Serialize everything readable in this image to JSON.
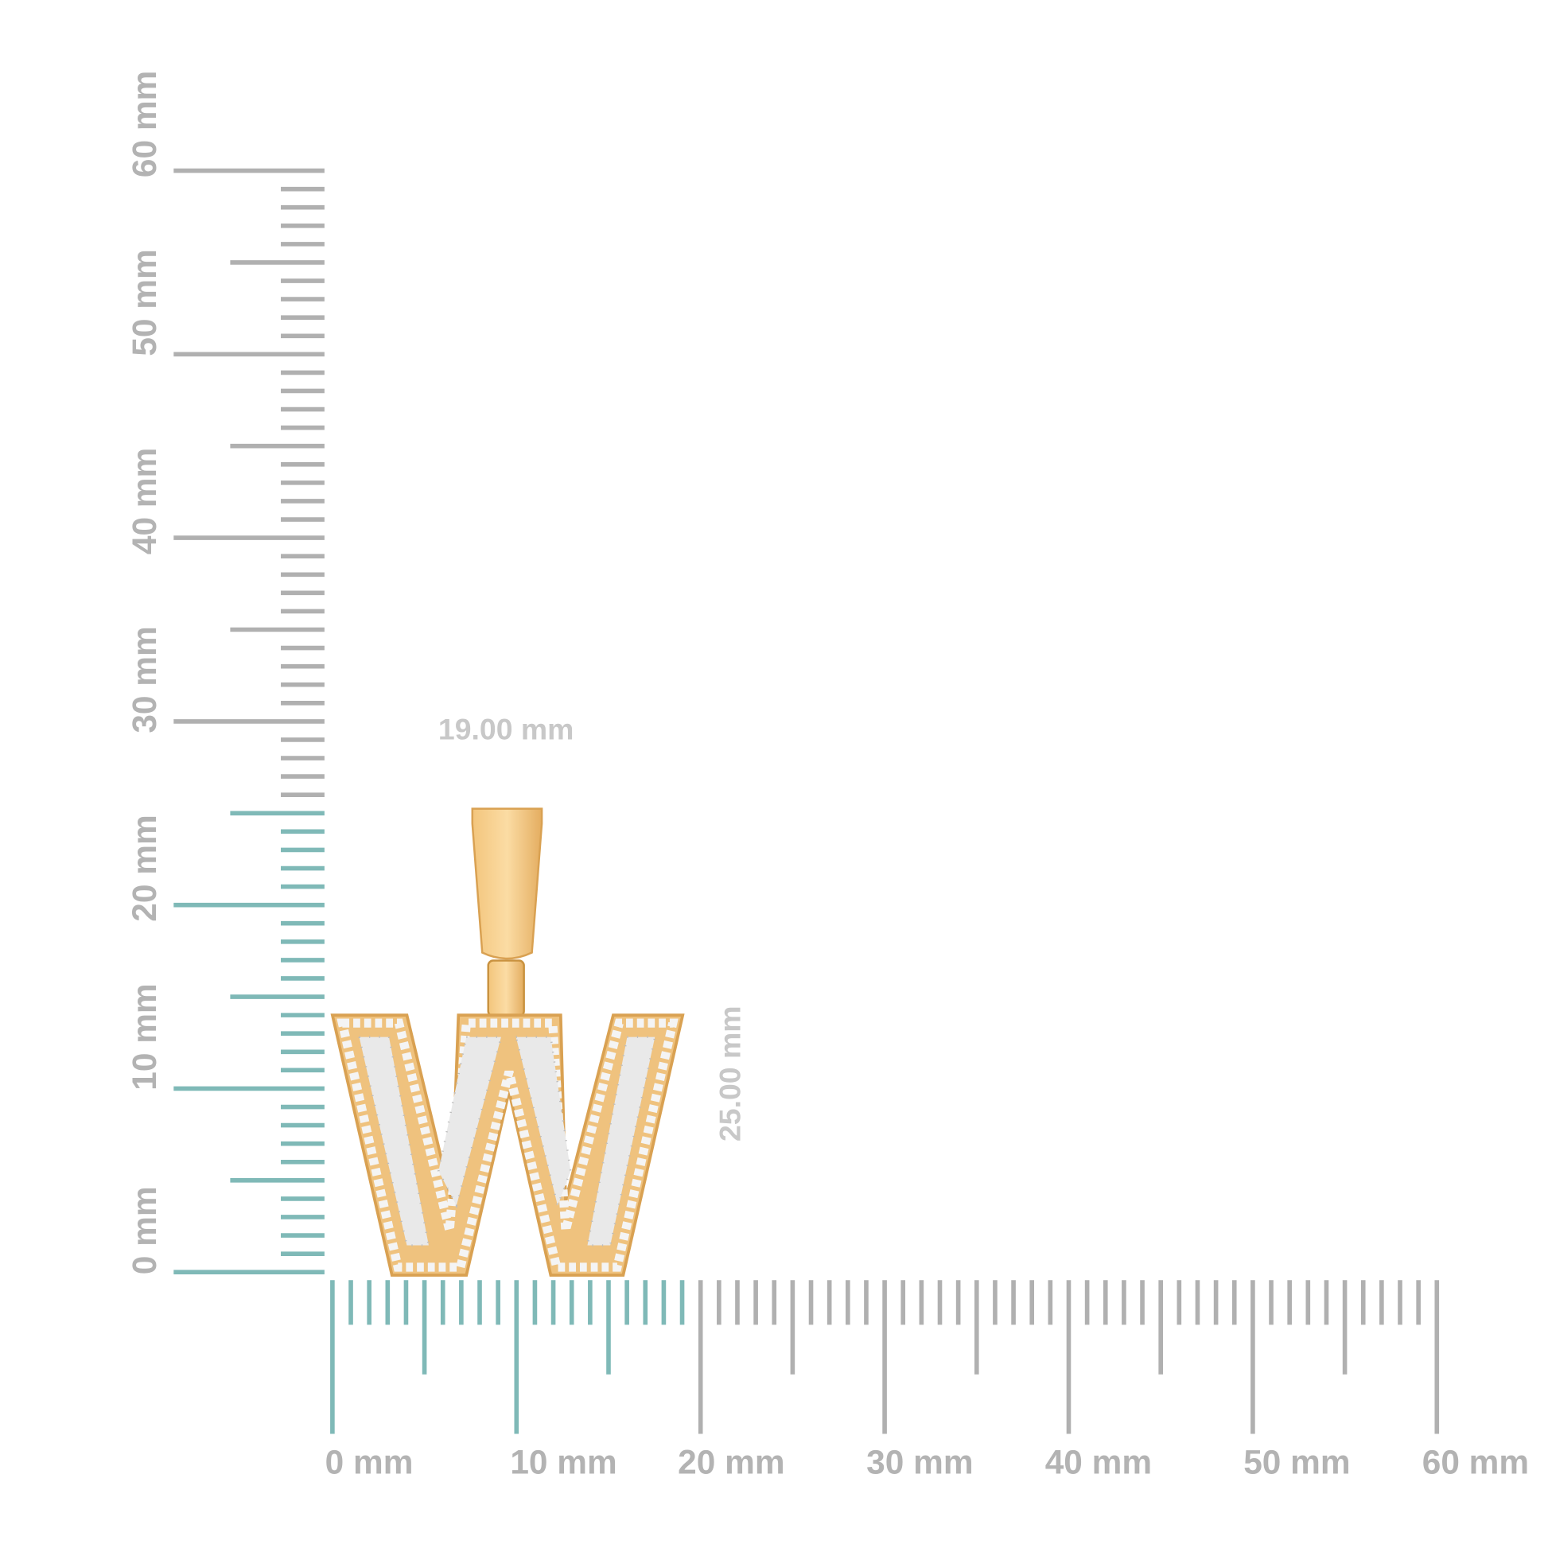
{
  "horizontal_ruler": {
    "labels": [
      "0 mm",
      "10 mm",
      "20 mm",
      "30 mm",
      "40 mm",
      "50 mm",
      "60 mm"
    ]
  },
  "vertical_ruler": {
    "labels": [
      "0 mm",
      "10 mm",
      "20 mm",
      "30 mm",
      "40 mm",
      "50 mm",
      "60 mm"
    ]
  },
  "dimensions": {
    "width": "19.00 mm",
    "height": "25.00 mm"
  }
}
